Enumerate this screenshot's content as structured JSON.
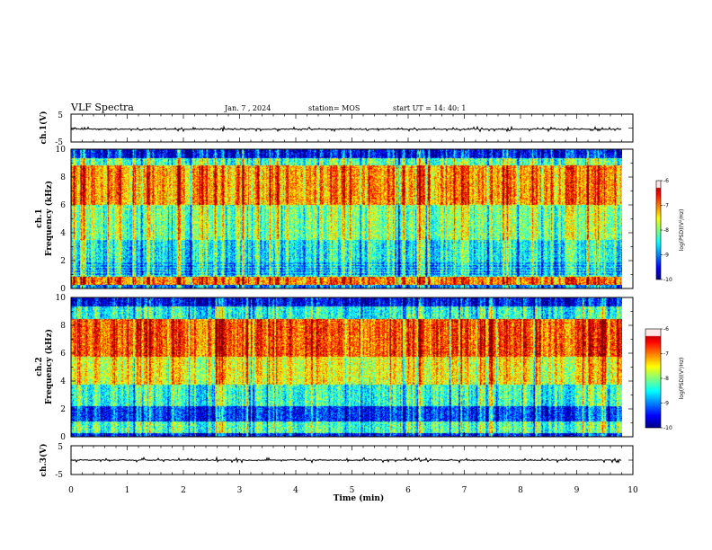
{
  "header": {
    "title": "VLF Spectra",
    "date": "Jan. 7 , 2024",
    "station": "station= MOS",
    "start": "start UT = 14: 40: 1"
  },
  "chart_data": [
    {
      "type": "line",
      "id": "ch1-waveform",
      "ylabel": "ch.1(V)",
      "yticks": [
        "5",
        "-5"
      ],
      "ylim": [
        -5,
        5
      ],
      "xlim": [
        0,
        10
      ],
      "description_level": -0.4
    },
    {
      "type": "heatmap",
      "id": "ch1-spectrogram",
      "ylabel": "ch.1 Frequency (kHz)",
      "ylabel_line1": "ch.1",
      "ylabel_line2": "Frequency (kHz)",
      "yticks": [
        "0",
        "2",
        "4",
        "6",
        "8",
        "10"
      ],
      "ylim": [
        0,
        10
      ],
      "xlim": [
        0,
        9.8
      ],
      "colorbar": {
        "label": "log(PSD)(V²/Hz)",
        "ticks": [
          "-6",
          "-7",
          "-8",
          "-9",
          "-10"
        ],
        "range": [
          -10,
          -6
        ]
      }
    },
    {
      "type": "heatmap",
      "id": "ch2-spectrogram",
      "ylabel": "ch.2 Frequency (kHz)",
      "ylabel_line1": "ch.2",
      "ylabel_line2": "Frequency (kHz)",
      "yticks": [
        "0",
        "2",
        "4",
        "6",
        "8",
        "10"
      ],
      "ylim": [
        0,
        10
      ],
      "xlim": [
        0,
        9.8
      ],
      "colorbar": {
        "label": "log(PSD)(V²/Hz)",
        "ticks": [
          "-6",
          "-7",
          "-8",
          "-9",
          "-10"
        ],
        "range": [
          -10,
          -6
        ]
      }
    },
    {
      "type": "line",
      "id": "ch3-waveform",
      "ylabel": "ch.3(V)",
      "yticks": [
        "5",
        "-5"
      ],
      "ylim": [
        -5,
        5
      ],
      "xlim": [
        0,
        10
      ]
    }
  ],
  "xaxis": {
    "label": "Time (min)",
    "ticks": [
      "0",
      "1",
      "2",
      "3",
      "4",
      "5",
      "6",
      "7",
      "8",
      "9",
      "10"
    ],
    "range": [
      0,
      10
    ]
  },
  "colors": {
    "jet": [
      "#00007f",
      "#0000ff",
      "#0080ff",
      "#00ffff",
      "#80ff80",
      "#ffff00",
      "#ff8000",
      "#ff0000",
      "#ffffff"
    ]
  }
}
